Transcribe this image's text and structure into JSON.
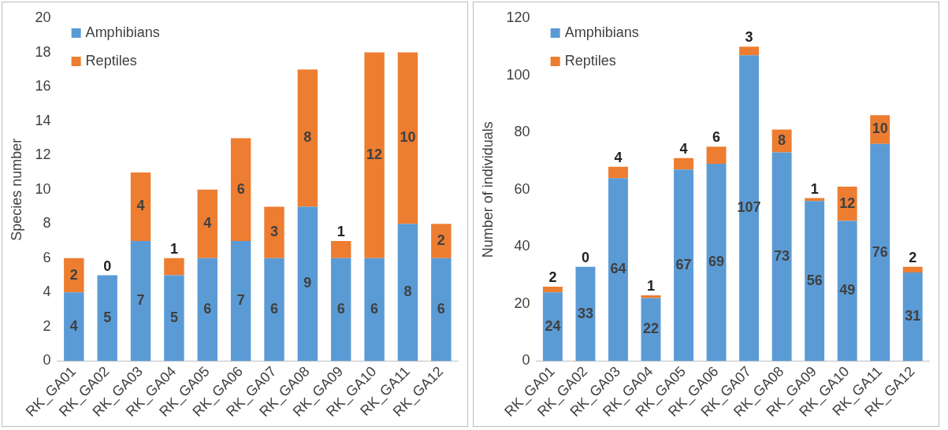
{
  "chart_data": [
    {
      "type": "bar",
      "stacked": true,
      "ylabel": "Species number",
      "categories": [
        "RK_GA01",
        "RK_GA02",
        "RK_GA03",
        "RK_GA04",
        "RK_GA05",
        "RK_GA06",
        "RK_GA07",
        "RK_GA08",
        "RK_GA09",
        "RK_GA10",
        "RK_GA11",
        "RK_GA12"
      ],
      "series": [
        {
          "name": "Amphibians",
          "color": "#5b9bd5",
          "values": [
            4,
            5,
            7,
            5,
            6,
            7,
            6,
            9,
            6,
            6,
            8,
            6
          ]
        },
        {
          "name": "Reptiles",
          "color": "#ed7d31",
          "values": [
            2,
            0,
            4,
            1,
            4,
            6,
            3,
            8,
            1,
            12,
            10,
            2
          ]
        }
      ],
      "ylim": [
        0,
        20
      ],
      "yticks": [
        0,
        2,
        4,
        6,
        8,
        10,
        12,
        14,
        16,
        18,
        20
      ],
      "grid": false,
      "legend": "top left",
      "data_labels": true
    },
    {
      "type": "bar",
      "stacked": true,
      "ylabel": "Number of individuals",
      "categories": [
        "RK_GA01",
        "RK_GA02",
        "RK_GA03",
        "RK_GA04",
        "RK_GA05",
        "RK_GA06",
        "RK_GA07",
        "RK_GA08",
        "RK_GA09",
        "RK_GA10",
        "RK_GA11",
        "RK_GA12"
      ],
      "series": [
        {
          "name": "Amphibians",
          "color": "#5b9bd5",
          "values": [
            24,
            33,
            64,
            22,
            67,
            69,
            107,
            73,
            56,
            49,
            76,
            31
          ]
        },
        {
          "name": "Reptiles",
          "color": "#ed7d31",
          "values": [
            2,
            0,
            4,
            1,
            4,
            6,
            3,
            8,
            1,
            12,
            10,
            2
          ]
        }
      ],
      "ylim": [
        0,
        120
      ],
      "yticks": [
        0,
        20,
        40,
        60,
        80,
        100,
        120
      ],
      "grid": false,
      "legend": "top left",
      "data_labels": true
    }
  ]
}
